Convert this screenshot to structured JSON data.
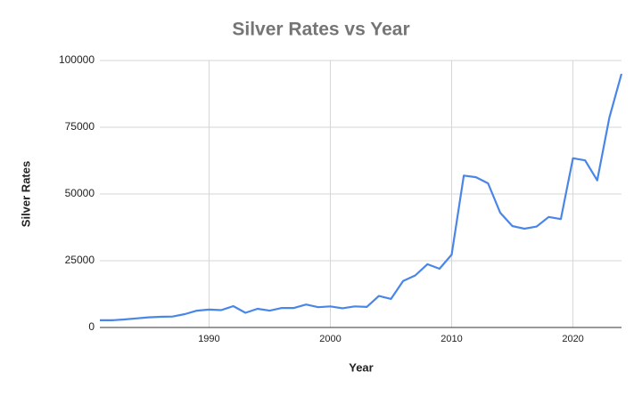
{
  "chart_data": {
    "type": "line",
    "title": "Silver Rates vs Year",
    "x_label": "Year",
    "y_label": "Silver Rates",
    "x": [
      1981,
      1982,
      1983,
      1984,
      1985,
      1986,
      1987,
      1988,
      1989,
      1990,
      1991,
      1992,
      1993,
      1994,
      1995,
      1996,
      1997,
      1998,
      1999,
      2000,
      2001,
      2002,
      2003,
      2004,
      2005,
      2006,
      2007,
      2008,
      2009,
      2010,
      2011,
      2012,
      2013,
      2014,
      2015,
      2016,
      2017,
      2018,
      2019,
      2020,
      2021,
      2022,
      2023,
      2024
    ],
    "series": [
      {
        "name": "Silver Rates",
        "color": "#4a86e8",
        "values": [
          2700,
          2700,
          3000,
          3400,
          3800,
          4000,
          4100,
          5000,
          6300,
          6700,
          6500,
          8000,
          5500,
          7000,
          6300,
          7300,
          7300,
          8600,
          7600,
          7900,
          7200,
          7900,
          7700,
          11800,
          10700,
          17400,
          19500,
          23700,
          22000,
          27300,
          56900,
          56300,
          54000,
          43000,
          38000,
          37000,
          37800,
          41400,
          40600,
          63400,
          62600,
          55100,
          78600,
          95000
        ]
      }
    ],
    "xlim": [
      1981,
      2024
    ],
    "xticks": [
      1990,
      2000,
      2010,
      2020
    ],
    "ylim": [
      0,
      100000
    ],
    "yticks": [
      0,
      25000,
      50000,
      75000,
      100000
    ],
    "grid": true
  }
}
